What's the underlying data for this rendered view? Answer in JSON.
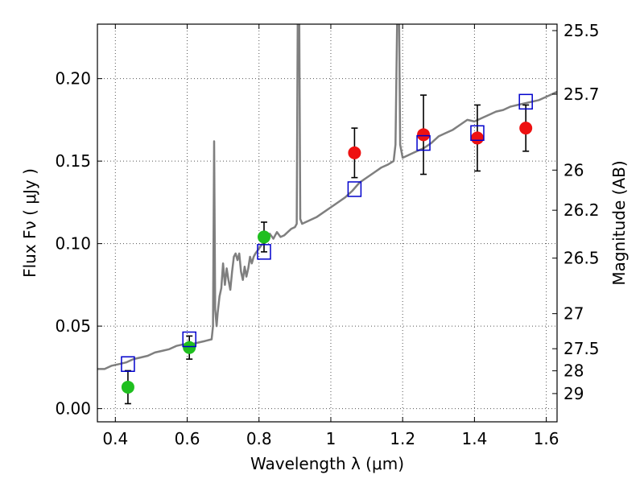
{
  "chart_data": {
    "type": "scatter",
    "xlabel": "Wavelength  λ (μm)",
    "ylabel": "Flux  Fν  ( μJy )",
    "ylabel_right": "Magnitude (AB)",
    "xlim": [
      0.35,
      1.63
    ],
    "ylim": [
      -0.008,
      0.233
    ],
    "grid": true,
    "x_ticks": [
      {
        "value": 0.4,
        "label": "0.4"
      },
      {
        "value": 0.6,
        "label": "0.6"
      },
      {
        "value": 0.8,
        "label": "0.8"
      },
      {
        "value": 1.0,
        "label": "1"
      },
      {
        "value": 1.2,
        "label": "1.2"
      },
      {
        "value": 1.4,
        "label": "1.4"
      },
      {
        "value": 1.6,
        "label": "1.6"
      }
    ],
    "y_ticks": [
      {
        "value": 0.0,
        "label": "0.00"
      },
      {
        "value": 0.05,
        "label": "0.05"
      },
      {
        "value": 0.1,
        "label": "0.10"
      },
      {
        "value": 0.15,
        "label": "0.15"
      },
      {
        "value": 0.2,
        "label": "0.20"
      }
    ],
    "right_ticks": [
      {
        "value": 25.5,
        "label": "25.5"
      },
      {
        "value": 25.7,
        "label": "25.7"
      },
      {
        "value": 26,
        "label": "26"
      },
      {
        "value": 26.2,
        "label": "26.2"
      },
      {
        "value": 26.5,
        "label": "26.5"
      },
      {
        "value": 27,
        "label": "27"
      },
      {
        "value": 27.5,
        "label": "27.5"
      },
      {
        "value": 28,
        "label": "28"
      },
      {
        "value": 29,
        "label": "29"
      }
    ],
    "colors": {
      "model_line": "#7f7f7f",
      "model_photometry": "#0000cc",
      "optical_points": "#1fbf1f",
      "nir_points": "#ee1111",
      "error_bar": "#000000",
      "grid": "#555555"
    },
    "series": [
      {
        "marker": "circle",
        "color": "#1fbf1f",
        "points": [
          {
            "x": 0.435,
            "y": 0.013,
            "err": 0.01
          },
          {
            "x": 0.606,
            "y": 0.037,
            "err": 0.007
          },
          {
            "x": 0.814,
            "y": 0.104,
            "err": 0.009
          }
        ]
      },
      {
        "marker": "circle",
        "color": "#ee1111",
        "points": [
          {
            "x": 1.066,
            "y": 0.155,
            "err": 0.015
          },
          {
            "x": 1.258,
            "y": 0.166,
            "err": 0.024
          },
          {
            "x": 1.408,
            "y": 0.164,
            "err": 0.02
          },
          {
            "x": 1.543,
            "y": 0.17,
            "err": 0.014
          }
        ]
      },
      {
        "marker": "open-square",
        "color": "#0000cc",
        "points": [
          {
            "x": 0.435,
            "y": 0.027
          },
          {
            "x": 0.606,
            "y": 0.042
          },
          {
            "x": 0.814,
            "y": 0.095
          },
          {
            "x": 1.066,
            "y": 0.133
          },
          {
            "x": 1.258,
            "y": 0.161
          },
          {
            "x": 1.408,
            "y": 0.167
          },
          {
            "x": 1.543,
            "y": 0.186
          }
        ]
      }
    ],
    "model_spectrum": [
      [
        0.35,
        0.024
      ],
      [
        0.37,
        0.024
      ],
      [
        0.39,
        0.026
      ],
      [
        0.41,
        0.027
      ],
      [
        0.43,
        0.028
      ],
      [
        0.45,
        0.03
      ],
      [
        0.47,
        0.031
      ],
      [
        0.49,
        0.032
      ],
      [
        0.51,
        0.034
      ],
      [
        0.53,
        0.035
      ],
      [
        0.55,
        0.036
      ],
      [
        0.57,
        0.038
      ],
      [
        0.59,
        0.039
      ],
      [
        0.61,
        0.039
      ],
      [
        0.63,
        0.04
      ],
      [
        0.65,
        0.041
      ],
      [
        0.668,
        0.042
      ],
      [
        0.672,
        0.05
      ],
      [
        0.675,
        0.162
      ],
      [
        0.678,
        0.06
      ],
      [
        0.682,
        0.05
      ],
      [
        0.685,
        0.058
      ],
      [
        0.69,
        0.068
      ],
      [
        0.695,
        0.073
      ],
      [
        0.7,
        0.088
      ],
      [
        0.705,
        0.075
      ],
      [
        0.71,
        0.085
      ],
      [
        0.715,
        0.078
      ],
      [
        0.72,
        0.072
      ],
      [
        0.725,
        0.083
      ],
      [
        0.73,
        0.092
      ],
      [
        0.735,
        0.094
      ],
      [
        0.74,
        0.09
      ],
      [
        0.745,
        0.094
      ],
      [
        0.75,
        0.083
      ],
      [
        0.755,
        0.078
      ],
      [
        0.76,
        0.086
      ],
      [
        0.765,
        0.08
      ],
      [
        0.77,
        0.085
      ],
      [
        0.775,
        0.092
      ],
      [
        0.78,
        0.088
      ],
      [
        0.785,
        0.092
      ],
      [
        0.79,
        0.094
      ],
      [
        0.8,
        0.097
      ],
      [
        0.81,
        0.1
      ],
      [
        0.82,
        0.104
      ],
      [
        0.83,
        0.106
      ],
      [
        0.84,
        0.103
      ],
      [
        0.85,
        0.107
      ],
      [
        0.86,
        0.104
      ],
      [
        0.87,
        0.105
      ],
      [
        0.88,
        0.107
      ],
      [
        0.89,
        0.109
      ],
      [
        0.9,
        0.11
      ],
      [
        0.905,
        0.112
      ],
      [
        0.908,
        0.24
      ],
      [
        0.912,
        0.24
      ],
      [
        0.915,
        0.115
      ],
      [
        0.92,
        0.112
      ],
      [
        0.94,
        0.114
      ],
      [
        0.96,
        0.116
      ],
      [
        0.98,
        0.119
      ],
      [
        1.0,
        0.122
      ],
      [
        1.02,
        0.125
      ],
      [
        1.04,
        0.128
      ],
      [
        1.06,
        0.132
      ],
      [
        1.08,
        0.137
      ],
      [
        1.1,
        0.14
      ],
      [
        1.12,
        0.143
      ],
      [
        1.14,
        0.146
      ],
      [
        1.16,
        0.148
      ],
      [
        1.175,
        0.15
      ],
      [
        1.18,
        0.16
      ],
      [
        1.185,
        0.24
      ],
      [
        1.19,
        0.24
      ],
      [
        1.193,
        0.16
      ],
      [
        1.2,
        0.152
      ],
      [
        1.22,
        0.154
      ],
      [
        1.24,
        0.156
      ],
      [
        1.26,
        0.158
      ],
      [
        1.28,
        0.161
      ],
      [
        1.3,
        0.165
      ],
      [
        1.32,
        0.167
      ],
      [
        1.34,
        0.169
      ],
      [
        1.36,
        0.172
      ],
      [
        1.38,
        0.175
      ],
      [
        1.4,
        0.174
      ],
      [
        1.42,
        0.176
      ],
      [
        1.44,
        0.178
      ],
      [
        1.46,
        0.18
      ],
      [
        1.48,
        0.181
      ],
      [
        1.5,
        0.183
      ],
      [
        1.52,
        0.184
      ],
      [
        1.54,
        0.185
      ],
      [
        1.56,
        0.186
      ],
      [
        1.58,
        0.187
      ],
      [
        1.6,
        0.189
      ],
      [
        1.62,
        0.191
      ],
      [
        1.63,
        0.192
      ]
    ]
  }
}
